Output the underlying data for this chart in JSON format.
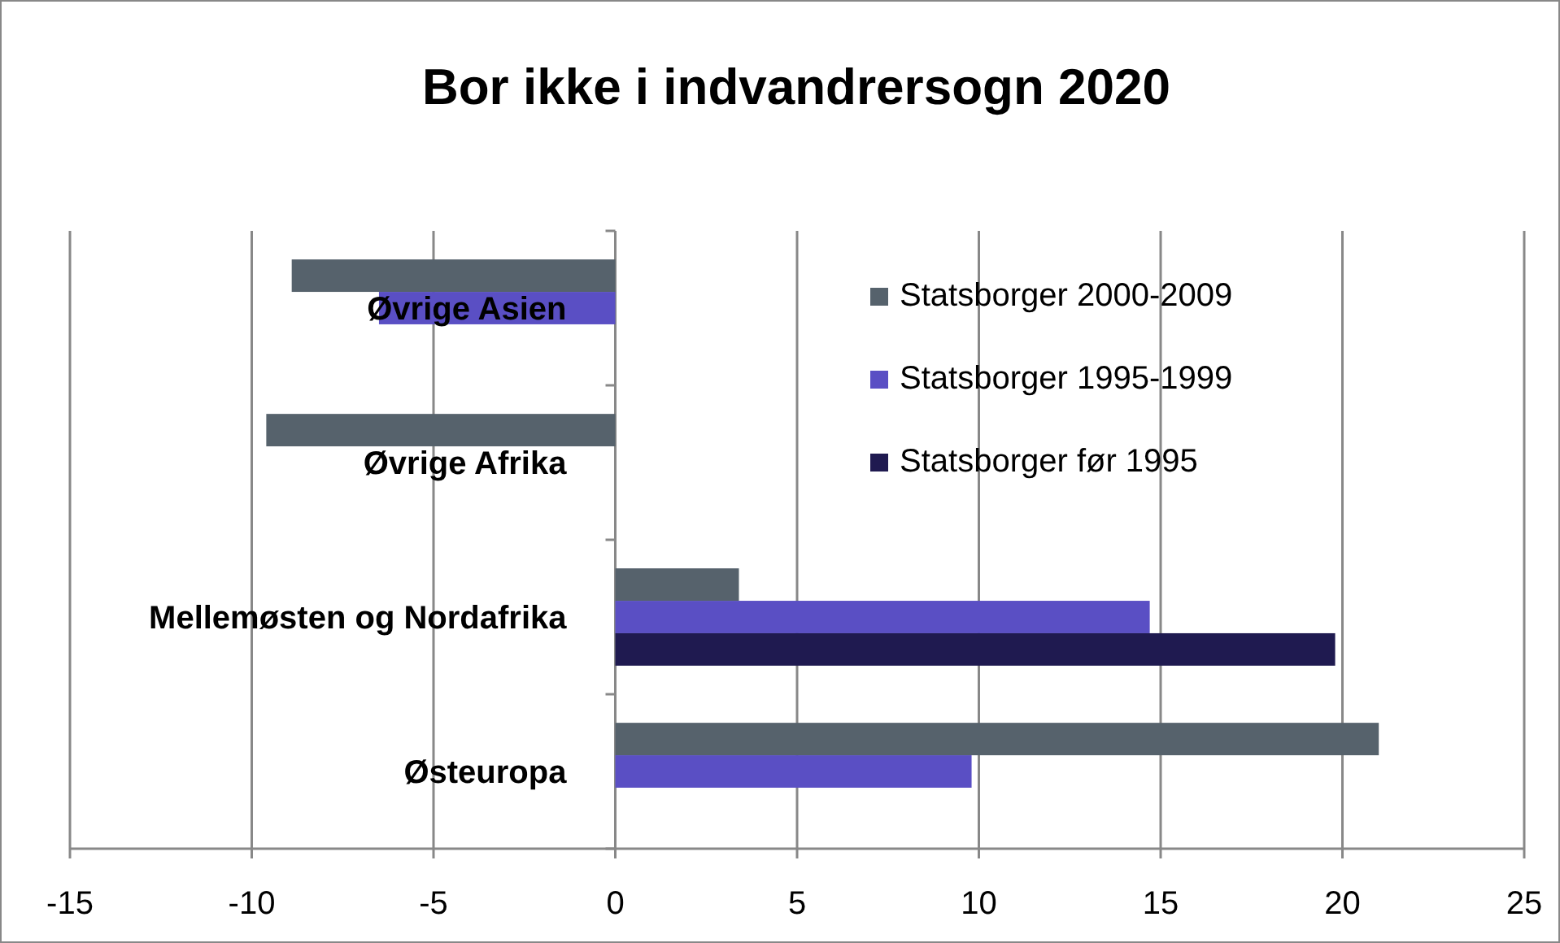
{
  "chart_data": {
    "type": "bar",
    "orientation": "horizontal",
    "title": "Bor ikke i indvandrersogn 2020",
    "categories": [
      "Øvrige Asien",
      "Øvrige Afrika",
      "Mellemøsten og Nordafrika",
      "Østeuropa"
    ],
    "series": [
      {
        "name": "Statsborger 2000-2009",
        "color": "#56626c",
        "values": [
          -8.9,
          -9.6,
          3.4,
          21.0
        ]
      },
      {
        "name": "Statsborger 1995-1999",
        "color": "#5a4fc4",
        "values": [
          -6.5,
          null,
          14.7,
          9.8
        ]
      },
      {
        "name": "Statsborger før 1995",
        "color": "#1f1a50",
        "values": [
          null,
          null,
          19.8,
          null
        ]
      }
    ],
    "xlim": [
      -15,
      25
    ],
    "xticks": [
      -15,
      -10,
      -5,
      0,
      5,
      10,
      15,
      20,
      25
    ],
    "grid": "x",
    "legend": "top right"
  }
}
